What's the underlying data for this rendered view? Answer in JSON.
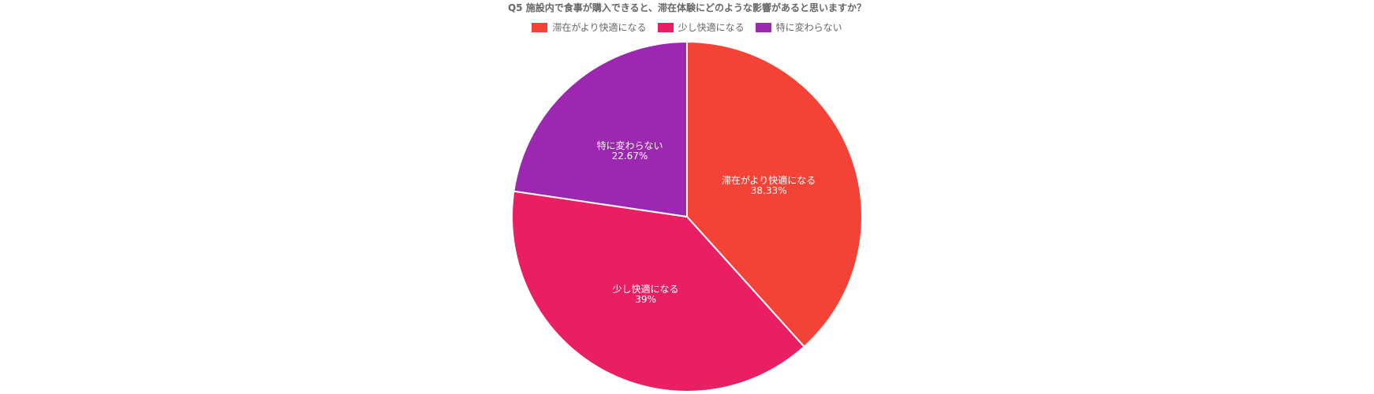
{
  "chart_data": {
    "type": "pie",
    "title": "Q5 施設内で食事が購入できると、滞在体験にどのような影響があると思いますか？",
    "slices": [
      {
        "label": "滞在がより快適になる",
        "value": 38.33,
        "value_label": "38.33%",
        "color": "#f44336"
      },
      {
        "label": "少し快適になる",
        "value": 39,
        "value_label": "39%",
        "color": "#e91e63"
      },
      {
        "label": "特に変わらない",
        "value": 22.67,
        "value_label": "22.67%",
        "color": "#9c27b0"
      }
    ],
    "legend_placement": "top-center"
  }
}
